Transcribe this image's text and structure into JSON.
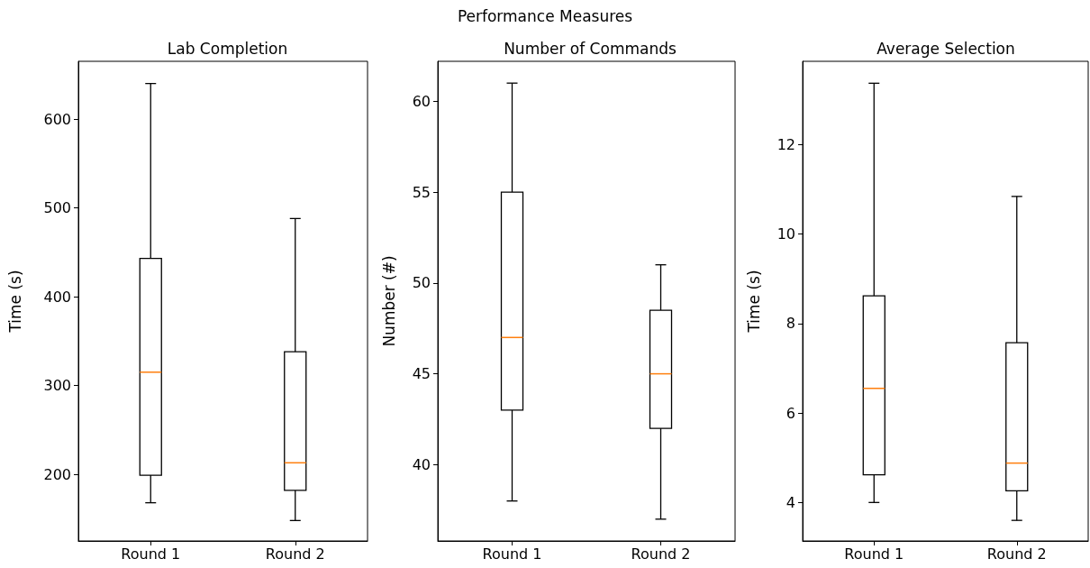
{
  "chart_data": [
    {
      "type": "box",
      "title": "Lab Completion",
      "ylabel": "Time (s)",
      "annotations": [
        "Performance Measures"
      ],
      "categories": [
        "Round 1",
        "Round 2"
      ],
      "ylim": [
        125,
        665
      ],
      "yticks": [
        200,
        300,
        400,
        500,
        600
      ],
      "series": [
        {
          "color": "#000000",
          "boxes": [
            {
              "low": 168,
              "q1": 199,
              "median": 315,
              "q3": 443,
              "high": 640
            },
            {
              "low": 148,
              "q1": 182,
              "median": 213,
              "q3": 338,
              "high": 488
            }
          ]
        }
      ]
    },
    {
      "type": "box",
      "title": "Number of Commands",
      "ylabel": "Number (#)",
      "categories": [
        "Round 1",
        "Round 2"
      ],
      "ylim": [
        35.8,
        62.2
      ],
      "yticks": [
        40,
        45,
        50,
        55,
        60
      ],
      "series": [
        {
          "color": "#000000",
          "boxes": [
            {
              "low": 38,
              "q1": 43,
              "median": 47,
              "q3": 55,
              "high": 61
            },
            {
              "low": 37,
              "q1": 42,
              "median": 45,
              "q3": 48.5,
              "high": 51
            }
          ]
        }
      ]
    },
    {
      "type": "box",
      "title": "Average Selection",
      "ylabel": "Time (s)",
      "categories": [
        "Round 1",
        "Round 2"
      ],
      "ylim": [
        3.14,
        13.86
      ],
      "yticks": [
        4,
        6,
        8,
        10,
        12
      ],
      "series": [
        {
          "color": "#000000",
          "boxes": [
            {
              "low": 4.0,
              "q1": 4.62,
              "median": 6.55,
              "q3": 8.62,
              "high": 13.37
            },
            {
              "low": 3.6,
              "q1": 4.26,
              "median": 4.88,
              "q3": 7.57,
              "high": 10.84
            }
          ]
        }
      ]
    }
  ]
}
